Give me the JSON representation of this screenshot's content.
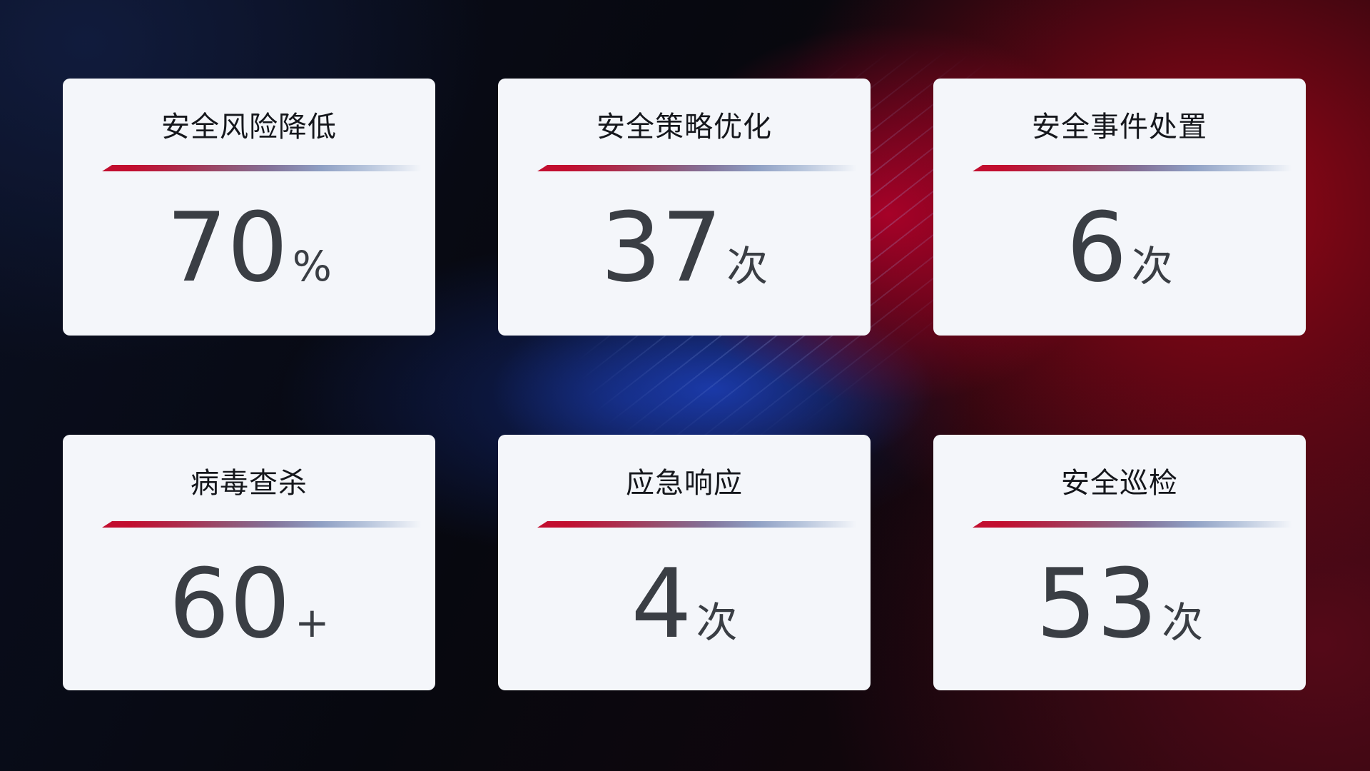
{
  "page": {
    "background_base": "#06070f",
    "accent_red": "#c20e2f",
    "accent_blue": "#1e44c8",
    "card_bg": "#f4f6fa",
    "title_text_color": "#15171c",
    "value_text_color": "#3a3e44",
    "divider_gradient": [
      "#c20e2f",
      "#95506f",
      "#8fa0c4",
      "#b7c5dc"
    ]
  },
  "cards": [
    {
      "title": "安全风险降低",
      "value": "70",
      "unit": "%"
    },
    {
      "title": "安全策略优化",
      "value": "37",
      "unit": "次"
    },
    {
      "title": "安全事件处置",
      "value": "6",
      "unit": "次"
    },
    {
      "title": "病毒查杀",
      "value": "60",
      "unit": "+"
    },
    {
      "title": "应急响应",
      "value": "4",
      "unit": "次"
    },
    {
      "title": "安全巡检",
      "value": "53",
      "unit": "次"
    }
  ]
}
